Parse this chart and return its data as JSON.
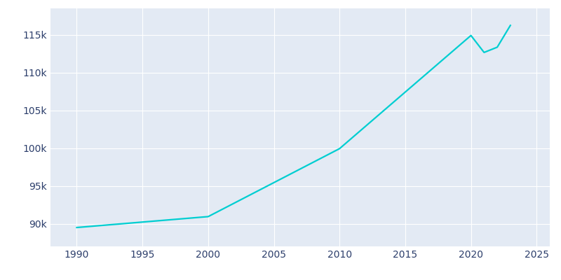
{
  "years": [
    1990,
    2000,
    2010,
    2020,
    2021,
    2022,
    2023
  ],
  "population": [
    89500,
    90943,
    99940,
    114917,
    112672,
    113364,
    116249
  ],
  "line_color": "#00CED1",
  "fig_bg_color": "#FFFFFF",
  "plot_bg_color": "#E3EAF4",
  "tick_color": "#2C3E6B",
  "grid_color": "#FFFFFF",
  "xlim": [
    1988,
    2026
  ],
  "ylim": [
    87000,
    118500
  ],
  "xticks": [
    1990,
    1995,
    2000,
    2005,
    2010,
    2015,
    2020,
    2025
  ],
  "yticks": [
    90000,
    95000,
    100000,
    105000,
    110000,
    115000
  ],
  "linewidth": 1.6
}
